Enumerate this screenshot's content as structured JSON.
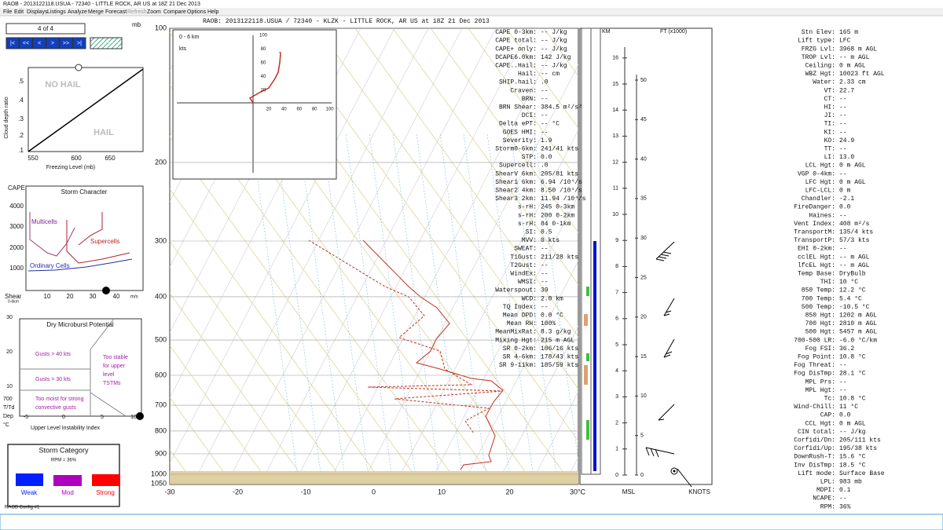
{
  "window": {
    "title": "RAOB - 2013122118.USUA - 72340 - LITTLE ROCK, AR US at 18Z 21 Dec 2013",
    "menu": [
      "File",
      "Edit",
      "Displays",
      "Listings",
      "Analyze",
      "Merge",
      "Forecast",
      "Refresh",
      "Zoom",
      "Compare",
      "Options",
      "Help"
    ]
  },
  "header": "RAOB:  2013122118.USUA / 72340 - KLZK - LITTLE ROCK, AR US at 18Z 21 Dec 2013",
  "nav": {
    "counter": "4 of 4",
    "unit": "mb",
    "buttons": [
      "|<",
      "<<",
      "<",
      ">",
      ">>",
      ">|"
    ]
  },
  "hail_panel": {
    "y_label": "Cloud depth ratio",
    "y_ticks": [
      ".5",
      ".4",
      ".3",
      ".2",
      ".1"
    ],
    "x_ticks": [
      "550",
      "600",
      "650"
    ],
    "x_label": "Freezing Level (mb)",
    "no_hail": "NO HAIL",
    "hail": "HAIL"
  },
  "storm_character": {
    "title": "Storm Character",
    "y_label": "CAPE",
    "y_ticks": [
      "4000",
      "3000",
      "2000",
      "1000"
    ],
    "multicells": "Multicells",
    "supercells": "Supercells",
    "ordinary": "Ordinary Cells",
    "x_label": "Shear",
    "x_sub": "0-6km",
    "x_ticks": [
      "10",
      "20",
      "30",
      "40"
    ],
    "x_unit": "m/s"
  },
  "microburst": {
    "title": "Dry Microburst Potential",
    "y_ticks": [
      "30",
      "20",
      "10"
    ],
    "gusts40": "Gusts > 40 kts",
    "gusts30": "Gusts > 30 kts",
    "moist": [
      "Too moist for strong",
      "convective gusts"
    ],
    "stable": [
      "Too stable",
      "for upper",
      "level",
      "TSTMs"
    ],
    "x_ticks": [
      "-5",
      "0",
      "5",
      "10"
    ],
    "y_label": [
      "700",
      "T/Td",
      "Dep",
      "°C"
    ],
    "x_label": "Upper Level Instability Index"
  },
  "storm_category": {
    "title": "Storm Category",
    "rpm": "RPM = 36%",
    "weak": "Weak",
    "mod": "Mod",
    "strong": "Strong"
  },
  "config": "RAOB Config #1",
  "skewt": {
    "pressure_labels": [
      "100",
      "200",
      "300",
      "400",
      "500",
      "600",
      "700",
      "800",
      "900",
      "1000",
      "1050"
    ],
    "temp_labels": [
      "-30",
      "-20",
      "-10",
      "0",
      "10",
      "20",
      "30°C"
    ]
  },
  "hodograph": {
    "title": "0 - 6 km",
    "unit": "kts",
    "y_ticks": [
      "100",
      "80",
      "60",
      "40",
      "20"
    ],
    "x_ticks": [
      "20",
      "40",
      "60",
      "80",
      "100"
    ]
  },
  "height_axes": {
    "km_label": "KM",
    "ft_label": "FT (x1000)",
    "msl": "MSL",
    "knots": "KNOTS",
    "km_ticks": [
      "0",
      "1",
      "2",
      "3",
      "4",
      "5",
      "6",
      "7",
      "8",
      "9",
      "10",
      "11",
      "12",
      "13",
      "14",
      "15",
      "16"
    ],
    "ft_ticks": [
      "0",
      "5",
      "10",
      "15",
      "20",
      "25",
      "30",
      "35",
      "40",
      "45",
      "50"
    ]
  },
  "center_params": [
    [
      "CAPE 0-3km:",
      "-- J/kg"
    ],
    [
      "CAPE total:",
      "-- J/kg"
    ],
    [
      "CAPE+ only:",
      "-- J/kg"
    ],
    [
      "DCAPE6.0km:",
      "142 J/kg"
    ],
    [
      "CAPE..Hail:",
      "-- J/kg"
    ],
    [
      "Hail:",
      "-- cm"
    ],
    [
      "SHIP.hail:",
      ".0"
    ],
    [
      "Craven:",
      "--"
    ],
    [
      "BRN:",
      "--"
    ],
    [
      "BRN Shear:",
      "384.5 m²/s²"
    ],
    [
      "DCI:",
      "--"
    ],
    [
      "Delta ePT:",
      "-- °C"
    ],
    [
      "GOES HMI:",
      "--"
    ],
    [
      "Severity:",
      "1.9"
    ],
    [
      "Storm0-6km:",
      "241/41 kts"
    ],
    [
      "STP:",
      "0.0"
    ],
    [
      "Supercell:",
      ".0"
    ],
    [
      "ShearV 6km:",
      "205/81 kts"
    ],
    [
      "Shear1 6km:",
      "6.94 /10⁴/s"
    ],
    [
      "Shear2 4km:",
      "8.50 /10⁴/s"
    ],
    [
      "Shear3 2km:",
      "11.94 /10⁴/s"
    ],
    [
      "s-rH:",
      "245  0-3km"
    ],
    [
      "s-rH:",
      "200  0-2km"
    ],
    [
      "s-rH:",
      "84  0-1km"
    ],
    [
      "SI:",
      "0.5"
    ],
    [
      "MVV:",
      "0 kts"
    ],
    [
      "SWEAT:",
      "--"
    ],
    [
      "T1Gust:",
      "211/28 kts"
    ],
    [
      "T2Gust:",
      "--"
    ],
    [
      "WindEx:",
      "--"
    ],
    [
      "WMSI:",
      "--"
    ],
    [
      "Waterspout:",
      "39"
    ],
    [
      "WCD:",
      "2.0 km"
    ],
    [
      "TQ Index:",
      "--"
    ],
    [
      "Mean DPD:",
      "0.0 °C"
    ],
    [
      "Mean RH:",
      "100%"
    ],
    [
      "MeanMixRat:",
      "8.3 g/kg"
    ],
    [
      "Mixing Hgt:",
      "215 m AGL"
    ],
    [
      "SR 0-2km:",
      "106/16 kts"
    ],
    [
      "SR 4-6km:",
      "178/43 kts"
    ],
    [
      "SR 9-11km:",
      "185/59 kts"
    ]
  ],
  "right_params": [
    [
      "Stn Elev:",
      "165 m"
    ],
    [
      "Lift type:",
      "LFC"
    ],
    [
      "FRZG Lvl:",
      "3968 m AGL"
    ],
    [
      "TROP Lvl:",
      "-- m AGL"
    ],
    [
      "Ceiling:",
      "0 m AGL"
    ],
    [
      "WBZ Hgt:",
      "10023 ft AGL"
    ],
    [
      "Water:",
      "2.33 cm"
    ],
    [
      "VT:",
      "22.7"
    ],
    [
      "CT:",
      "--"
    ],
    [
      "HI:",
      "--"
    ],
    [
      "JI:",
      "--"
    ],
    [
      "TI:",
      "--"
    ],
    [
      "KI:",
      "--"
    ],
    [
      "KO:",
      "24.9"
    ],
    [
      "TT:",
      "--"
    ],
    [
      "LI:",
      "13.0"
    ],
    [
      "LCL Hgt:",
      "0 m AGL"
    ],
    [
      "VGP 0-4km:",
      "--"
    ],
    [
      "LFC Hgt:",
      "0 m AGL"
    ],
    [
      "LFC-LCL:",
      "0 m"
    ],
    [
      "Chandler:",
      "-2.1"
    ],
    [
      "FireDanger:",
      "0.0"
    ],
    [
      "Haines:",
      "--"
    ],
    [
      "Vent Index:",
      "408 m²/s"
    ],
    [
      "TransportM:",
      "135/4 kts"
    ],
    [
      "TransportP:",
      "57/3 kts"
    ],
    [
      "EHI 0-2km:",
      "--"
    ],
    [
      "cclEL Hgt:",
      "-- m AGL"
    ],
    [
      "lfcEL Hgt:",
      "-- m AGL"
    ],
    [
      "Temp Base:",
      "DryBulb"
    ],
    [
      "THI:",
      "10 °C"
    ],
    [
      "850 Temp:",
      "12.2 °C"
    ],
    [
      "700 Temp:",
      "5.4 °C"
    ],
    [
      "500 Temp:",
      "-10.5 °C"
    ],
    [
      "850 Hgt:",
      "1202 m AGL"
    ],
    [
      "700 Hgt:",
      "2810 m AGL"
    ],
    [
      "500 Hgt:",
      "5457 m AGL"
    ],
    [
      "700-500 LR:",
      "-6.0 °C/km"
    ],
    [
      "Fog FSI:",
      "36.2"
    ],
    [
      "Fog Point:",
      "10.8 °C"
    ],
    [
      "Fog Threat:",
      "--"
    ],
    [
      "Fog DisTmp:",
      "28.1 °C"
    ],
    [
      "MPL Prs:",
      "--"
    ],
    [
      "MPL Hgt:",
      "--"
    ],
    [
      "Tc:",
      "10.8 °C"
    ],
    [
      "Wind-Chill:",
      "11 °C"
    ],
    [
      "CAP:",
      "0.0"
    ],
    [
      "CCL Hgt:",
      "0 m AGL"
    ],
    [
      "CIN total:",
      "-- J/kg"
    ],
    [
      "Corfidi/Dn:",
      "205/111 kts"
    ],
    [
      "Corfidi/Up:",
      "195/38 kts"
    ],
    [
      "DownRush-T:",
      "15.6 °C"
    ],
    [
      "Inv DisTmp:",
      "18.5 °C"
    ],
    [
      "Lift mode:",
      "Surface Base"
    ],
    [
      "LPL:",
      "983 mb"
    ],
    [
      "MDPI:",
      "0.1"
    ],
    [
      "NCAPE:",
      "--"
    ],
    [
      "RPM:",
      "36%"
    ]
  ]
}
